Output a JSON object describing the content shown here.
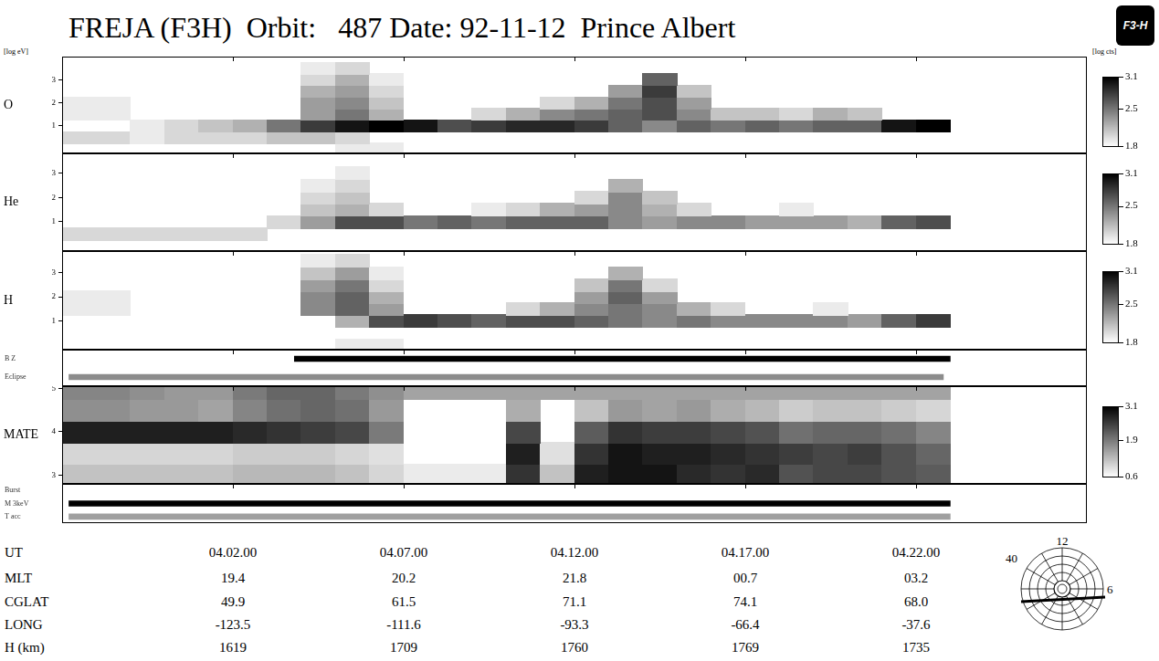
{
  "title": "FREJA (F3H)  Orbit:   487 Date: 92-11-12  Prince Albert",
  "logo": "F3-H",
  "y_unit": "[log eV]",
  "color_unit": "[log cts]",
  "chart_data": [
    {
      "type": "heatmap",
      "name": "O",
      "x_edges": [
        237,
        238,
        239,
        240,
        241,
        242,
        243,
        244,
        245,
        246,
        247,
        248,
        249,
        250,
        251,
        252,
        253,
        254,
        255,
        256,
        257,
        258,
        259,
        260,
        261,
        262,
        263
      ],
      "y_edges": [
        -0.25,
        0.25,
        0.75,
        1.25,
        1.75,
        2.25,
        2.75,
        3.25,
        3.75
      ],
      "cells": [
        [
          null,
          null,
          null,
          null,
          null,
          null,
          null,
          null,
          1.9,
          1.9,
          null,
          null,
          null,
          null,
          null,
          null,
          null,
          null,
          null,
          null,
          null,
          null,
          null,
          null,
          null,
          null
        ],
        [
          2.0,
          2.0,
          1.9,
          2.0,
          2.0,
          2.0,
          2.1,
          2.1,
          2.0,
          null,
          null,
          null,
          null,
          null,
          null,
          null,
          null,
          null,
          null,
          null,
          null,
          null,
          null,
          null,
          null,
          null
        ],
        [
          null,
          null,
          1.9,
          2.0,
          2.1,
          2.2,
          2.5,
          2.8,
          3.0,
          3.1,
          3.0,
          2.7,
          2.8,
          2.9,
          2.9,
          2.8,
          2.6,
          2.4,
          2.6,
          2.5,
          2.6,
          2.5,
          2.6,
          2.6,
          3.0,
          3.1
        ],
        [
          1.9,
          1.9,
          null,
          null,
          null,
          null,
          null,
          2.3,
          2.5,
          2.2,
          null,
          null,
          2.0,
          2.2,
          2.4,
          2.5,
          2.6,
          2.7,
          2.4,
          2.1,
          2.1,
          2.0,
          2.2,
          2.1,
          null,
          null
        ],
        [
          1.9,
          1.9,
          null,
          null,
          null,
          null,
          null,
          2.3,
          2.4,
          2.1,
          null,
          null,
          null,
          null,
          2.0,
          2.2,
          2.5,
          2.7,
          2.3,
          null,
          null,
          null,
          null,
          null,
          null,
          null
        ],
        [
          null,
          null,
          null,
          null,
          null,
          null,
          null,
          2.2,
          2.3,
          2.0,
          null,
          null,
          null,
          null,
          null,
          null,
          2.3,
          2.8,
          2.1,
          null,
          null,
          null,
          null,
          null,
          null,
          null
        ],
        [
          null,
          null,
          null,
          null,
          null,
          null,
          null,
          2.0,
          2.2,
          1.9,
          null,
          null,
          null,
          null,
          null,
          null,
          null,
          2.6,
          null,
          null,
          null,
          null,
          null,
          null,
          null,
          null
        ],
        [
          null,
          null,
          null,
          null,
          null,
          null,
          null,
          1.9,
          2.0,
          null,
          null,
          null,
          null,
          null,
          null,
          null,
          null,
          null,
          null,
          null,
          null,
          null,
          null,
          null,
          null,
          null
        ]
      ],
      "xlim": [
        237,
        267
      ],
      "ylim": [
        -0.2,
        4.0
      ],
      "xticks": [
        242,
        247,
        252,
        257,
        262
      ],
      "yticks": [
        1,
        2,
        3
      ],
      "tick_labels": "y",
      "grid": false,
      "colorbar": {
        "range": [
          1.8,
          3.1
        ],
        "ticks": [
          1.8,
          2.5,
          3.1
        ]
      }
    },
    {
      "type": "heatmap",
      "name": "He",
      "x_edges": [
        237,
        238,
        239,
        240,
        241,
        242,
        243,
        244,
        245,
        246,
        247,
        248,
        249,
        250,
        251,
        252,
        253,
        254,
        255,
        256,
        257,
        258,
        259,
        260,
        261,
        262,
        263
      ],
      "y_edges": [
        -0.25,
        0.25,
        0.75,
        1.25,
        1.75,
        2.25,
        2.75,
        3.25,
        3.75
      ],
      "cells": [
        [
          null,
          null,
          null,
          null,
          null,
          null,
          null,
          null,
          null,
          null,
          null,
          null,
          null,
          null,
          null,
          null,
          null,
          null,
          null,
          null,
          null,
          null,
          null,
          null,
          null,
          null
        ],
        [
          2.0,
          2.0,
          2.0,
          2.0,
          2.0,
          2.0,
          null,
          null,
          null,
          null,
          null,
          null,
          null,
          null,
          null,
          null,
          null,
          null,
          null,
          null,
          null,
          null,
          null,
          null,
          null,
          null
        ],
        [
          null,
          null,
          null,
          null,
          null,
          null,
          2.0,
          2.3,
          2.7,
          2.7,
          2.5,
          2.6,
          2.5,
          2.6,
          2.6,
          2.6,
          2.4,
          2.3,
          2.4,
          2.4,
          2.3,
          2.3,
          2.3,
          2.2,
          2.6,
          2.7
        ],
        [
          null,
          null,
          null,
          null,
          null,
          null,
          null,
          2.1,
          2.2,
          2.0,
          null,
          null,
          1.9,
          2.0,
          2.2,
          2.3,
          2.4,
          2.2,
          2.0,
          null,
          null,
          1.9,
          null,
          null,
          null,
          null
        ],
        [
          null,
          null,
          null,
          null,
          null,
          null,
          null,
          2.0,
          2.1,
          null,
          null,
          null,
          null,
          null,
          null,
          2.0,
          2.4,
          2.1,
          null,
          null,
          null,
          null,
          null,
          null,
          null,
          null
        ],
        [
          null,
          null,
          null,
          null,
          null,
          null,
          null,
          1.9,
          2.0,
          null,
          null,
          null,
          null,
          null,
          null,
          null,
          2.2,
          null,
          null,
          null,
          null,
          null,
          null,
          null,
          null,
          null
        ],
        [
          null,
          null,
          null,
          null,
          null,
          null,
          null,
          null,
          1.9,
          null,
          null,
          null,
          null,
          null,
          null,
          null,
          null,
          null,
          null,
          null,
          null,
          null,
          null,
          null,
          null,
          null
        ],
        [
          null,
          null,
          null,
          null,
          null,
          null,
          null,
          null,
          null,
          null,
          null,
          null,
          null,
          null,
          null,
          null,
          null,
          null,
          null,
          null,
          null,
          null,
          null,
          null,
          null,
          null
        ]
      ],
      "xlim": [
        237,
        267
      ],
      "ylim": [
        -0.2,
        3.8
      ],
      "xticks": [
        242,
        247,
        252,
        257,
        262
      ],
      "yticks": [
        1,
        2,
        3
      ],
      "tick_labels": "y",
      "grid": false,
      "colorbar": {
        "range": [
          1.8,
          3.1
        ],
        "ticks": [
          1.8,
          2.5,
          3.1
        ]
      }
    },
    {
      "type": "heatmap",
      "name": "H",
      "x_edges": [
        237,
        238,
        239,
        240,
        241,
        242,
        243,
        244,
        245,
        246,
        247,
        248,
        249,
        250,
        251,
        252,
        253,
        254,
        255,
        256,
        257,
        258,
        259,
        260,
        261,
        262,
        263
      ],
      "y_edges": [
        -0.25,
        0.25,
        0.75,
        1.25,
        1.75,
        2.25,
        2.75,
        3.25,
        3.75
      ],
      "cells": [
        [
          null,
          null,
          null,
          null,
          null,
          null,
          null,
          null,
          1.9,
          1.9,
          null,
          null,
          null,
          null,
          null,
          null,
          null,
          null,
          null,
          null,
          null,
          null,
          null,
          null,
          null,
          null
        ],
        [
          null,
          null,
          null,
          null,
          null,
          null,
          null,
          null,
          null,
          null,
          null,
          null,
          null,
          null,
          null,
          null,
          null,
          null,
          null,
          null,
          null,
          null,
          null,
          null,
          null,
          null
        ],
        [
          null,
          null,
          null,
          null,
          null,
          null,
          null,
          null,
          2.2,
          2.7,
          2.8,
          2.7,
          2.6,
          2.7,
          2.7,
          2.6,
          2.5,
          2.4,
          2.5,
          2.4,
          2.4,
          2.4,
          2.4,
          2.3,
          2.6,
          2.8
        ],
        [
          1.9,
          1.9,
          null,
          null,
          null,
          null,
          null,
          2.4,
          2.6,
          2.3,
          null,
          null,
          null,
          2.0,
          2.2,
          2.4,
          2.5,
          2.4,
          2.2,
          2.0,
          null,
          null,
          1.9,
          null,
          null,
          null
        ],
        [
          1.9,
          1.9,
          null,
          null,
          null,
          null,
          null,
          2.4,
          2.6,
          2.2,
          null,
          null,
          null,
          null,
          null,
          2.3,
          2.6,
          2.3,
          null,
          null,
          null,
          null,
          null,
          null,
          null,
          null
        ],
        [
          null,
          null,
          null,
          null,
          null,
          null,
          null,
          2.3,
          2.5,
          2.0,
          null,
          null,
          null,
          null,
          null,
          2.1,
          2.5,
          2.0,
          null,
          null,
          null,
          null,
          null,
          null,
          null,
          null
        ],
        [
          null,
          null,
          null,
          null,
          null,
          null,
          null,
          2.1,
          2.3,
          1.9,
          null,
          null,
          null,
          null,
          null,
          null,
          2.2,
          null,
          null,
          null,
          null,
          null,
          null,
          null,
          null,
          null
        ],
        [
          null,
          null,
          null,
          null,
          null,
          null,
          null,
          1.9,
          2.0,
          null,
          null,
          null,
          null,
          null,
          null,
          null,
          null,
          null,
          null,
          null,
          null,
          null,
          null,
          null,
          null,
          null
        ]
      ],
      "xlim": [
        237,
        267
      ],
      "ylim": [
        -0.2,
        3.9
      ],
      "xticks": [
        242,
        247,
        252,
        257,
        262
      ],
      "yticks": [
        1,
        2,
        3
      ],
      "tick_labels": "y",
      "grid": false,
      "colorbar": {
        "range": [
          1.8,
          3.1
        ],
        "ticks": [
          1.8,
          2.5,
          3.1
        ]
      }
    },
    {
      "type": "bar",
      "orientation": "horizontal",
      "categories": [
        "B Z",
        "Eclipse"
      ],
      "values": [
        [
          243.8,
          263.0
        ],
        [
          237.2,
          262.8
        ]
      ],
      "colors": [
        "#000000",
        "#8c8c8c"
      ],
      "xlim": [
        237,
        267
      ],
      "xticks": [
        242,
        247,
        252,
        257,
        262
      ],
      "tick_labels": "y",
      "grid": false
    },
    {
      "type": "heatmap",
      "name": "MATE",
      "x_edges": [
        237,
        238,
        239,
        240,
        241,
        242,
        243,
        244,
        245,
        246,
        247,
        248,
        249,
        250,
        251,
        252,
        253,
        254,
        255,
        256,
        257,
        258,
        259,
        260,
        261,
        262,
        263
      ],
      "y_edges": [
        2.75,
        3.25,
        3.75,
        4.25,
        4.75,
        5.25
      ],
      "cells": [
        [
          1.2,
          1.2,
          1.2,
          1.2,
          1.2,
          1.3,
          1.3,
          1.3,
          1.2,
          1.0,
          0.8,
          0.8,
          0.8,
          2.6,
          1.2,
          2.8,
          2.9,
          2.9,
          2.7,
          2.6,
          2.7,
          2.3,
          2.4,
          2.4,
          2.3,
          2.2
        ],
        [
          1.0,
          1.0,
          1.0,
          1.0,
          1.0,
          1.1,
          1.1,
          1.1,
          1.0,
          0.9,
          null,
          null,
          null,
          2.8,
          0.9,
          2.6,
          2.9,
          2.8,
          2.8,
          2.7,
          2.6,
          2.5,
          2.4,
          2.5,
          2.3,
          2.1
        ],
        [
          2.8,
          2.8,
          2.8,
          2.8,
          2.8,
          2.7,
          2.6,
          2.5,
          2.4,
          1.9,
          null,
          null,
          null,
          2.4,
          null,
          2.2,
          2.6,
          2.5,
          2.5,
          2.4,
          2.3,
          2.0,
          2.1,
          2.1,
          2.0,
          1.8
        ],
        [
          1.7,
          1.7,
          1.6,
          1.6,
          1.5,
          1.8,
          2.0,
          2.1,
          2.0,
          1.6,
          null,
          null,
          null,
          1.4,
          null,
          1.2,
          1.6,
          1.5,
          1.6,
          1.4,
          1.3,
          1.1,
          1.2,
          1.2,
          1.1,
          1.0
        ],
        [
          1.8,
          1.8,
          1.7,
          1.6,
          1.6,
          1.9,
          2.1,
          2.1,
          1.9,
          1.7,
          1.5,
          1.5,
          1.5,
          1.5,
          1.5,
          1.5,
          1.5,
          1.5,
          1.5,
          1.5,
          1.5,
          1.5,
          1.5,
          1.5,
          1.5,
          1.5
        ]
      ],
      "xlim": [
        237,
        267
      ],
      "ylim": [
        2.8,
        5.05
      ],
      "xticks": [
        242,
        247,
        252,
        257,
        262
      ],
      "yticks": [
        3,
        4,
        5
      ],
      "tick_labels": "y",
      "grid": false,
      "colorbar": {
        "range": [
          0.6,
          3.1
        ],
        "ticks": [
          0.6,
          1.9,
          3.1
        ]
      }
    },
    {
      "type": "bar",
      "orientation": "horizontal",
      "categories": [
        "Burst",
        "M 3keV",
        "T acc"
      ],
      "values": [
        null,
        [
          237.2,
          263.0
        ],
        [
          237.2,
          263.0
        ]
      ],
      "colors": [
        "#000000",
        "#000000",
        "#a0a0a0"
      ],
      "xlim": [
        237,
        267
      ],
      "xticks": [
        242,
        247,
        252,
        257,
        262
      ],
      "tick_labels": "y",
      "grid": false
    }
  ],
  "table": {
    "rows": [
      {
        "label": "UT",
        "values": [
          "04.02.00",
          "04.07.00",
          "04.12.00",
          "04.17.00",
          "04.22.00"
        ]
      },
      {
        "label": "MLT",
        "values": [
          "19.4",
          "20.2",
          "21.8",
          "00.7",
          "03.2"
        ]
      },
      {
        "label": "CGLAT",
        "values": [
          "49.9",
          "61.5",
          "71.1",
          "74.1",
          "68.0"
        ]
      },
      {
        "label": "LONG",
        "values": [
          "-123.5",
          "-111.6",
          "-93.3",
          "-66.4",
          "-37.6"
        ]
      },
      {
        "label": "H (km)",
        "values": [
          "1619",
          "1709",
          "1760",
          "1769",
          "1735"
        ]
      }
    ]
  },
  "dial": {
    "top": "12",
    "right": "6",
    "outer": "40"
  }
}
